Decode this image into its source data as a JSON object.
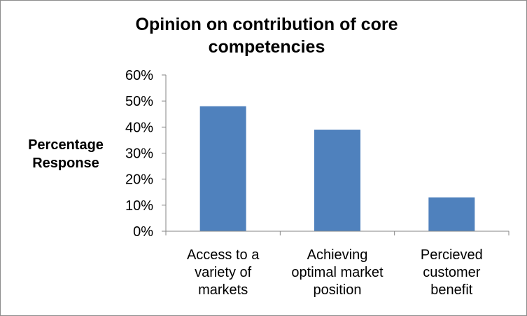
{
  "chart_data": {
    "type": "bar",
    "title_lines": [
      "Opinion on contribution of core",
      "competencies"
    ],
    "ylabel_lines": [
      "Percentage",
      "Response"
    ],
    "xlabel": "",
    "categories": [
      [
        "Access to a",
        "variety of",
        "markets"
      ],
      [
        "Achieving",
        "optimal market",
        "position"
      ],
      [
        "Percieved",
        "customer",
        "benefit"
      ]
    ],
    "values": [
      48,
      39,
      13
    ],
    "ylim": [
      0,
      60
    ],
    "yticks": [
      "0%",
      "10%",
      "20%",
      "30%",
      "40%",
      "50%",
      "60%"
    ],
    "grid": false,
    "legend": "none",
    "bar_color": "#4f81bd",
    "axis_color": "#868686"
  }
}
